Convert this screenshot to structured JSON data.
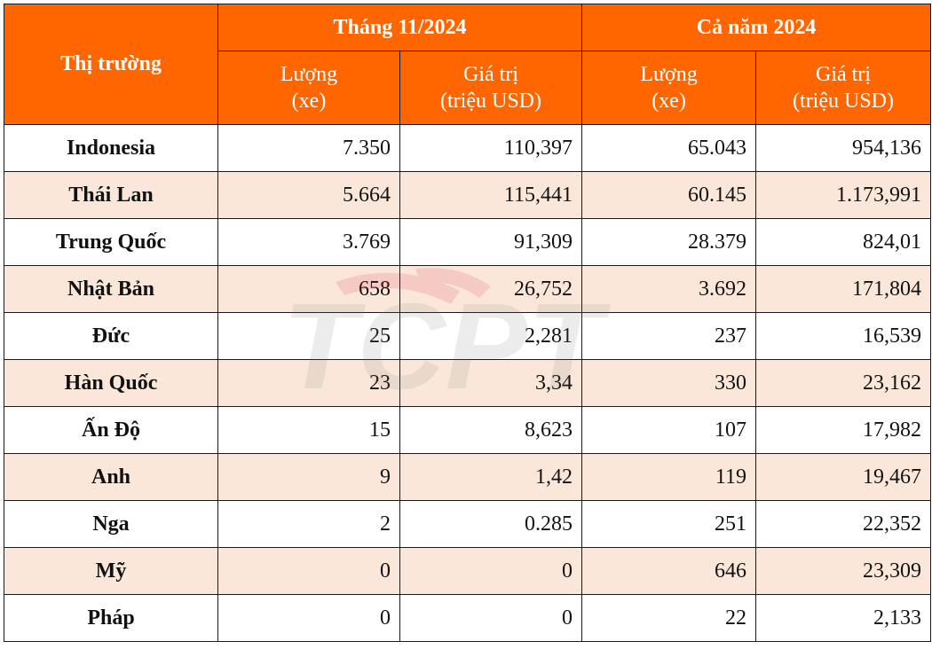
{
  "watermark": {
    "text": "TCPT",
    "color": "#c8102e"
  },
  "colors": {
    "header_bg": "#ff6600",
    "header_text": "#ffffff",
    "stripe": "#fbe7da",
    "border": "#1a1a1a"
  },
  "header": {
    "market": "Thị trường",
    "group1": "Tháng 11/2024",
    "group2": "Cả năm 2024",
    "qty_line1": "Lượng",
    "qty_line2": "(xe)",
    "val_line1": "Giá trị",
    "val_line2": "(triệu USD)"
  },
  "rows": [
    {
      "market": "Indonesia",
      "m_qty": "7.350",
      "m_val": "110,397",
      "y_qty": "65.043",
      "y_val": "954,136"
    },
    {
      "market": "Thái Lan",
      "m_qty": "5.664",
      "m_val": "115,441",
      "y_qty": "60.145",
      "y_val": "1.173,991"
    },
    {
      "market": "Trung Quốc",
      "m_qty": "3.769",
      "m_val": "91,309",
      "y_qty": "28.379",
      "y_val": "824,01"
    },
    {
      "market": "Nhật Bản",
      "m_qty": "658",
      "m_val": "26,752",
      "y_qty": "3.692",
      "y_val": "171,804"
    },
    {
      "market": "Đức",
      "m_qty": "25",
      "m_val": "2,281",
      "y_qty": "237",
      "y_val": "16,539"
    },
    {
      "market": "Hàn Quốc",
      "m_qty": "23",
      "m_val": "3,34",
      "y_qty": "330",
      "y_val": "23,162"
    },
    {
      "market": "Ấn Độ",
      "m_qty": "15",
      "m_val": "8,623",
      "y_qty": "107",
      "y_val": "17,982"
    },
    {
      "market": "Anh",
      "m_qty": "9",
      "m_val": "1,42",
      "y_qty": "119",
      "y_val": "19,467"
    },
    {
      "market": "Nga",
      "m_qty": "2",
      "m_val": "0.285",
      "y_qty": "251",
      "y_val": "22,352"
    },
    {
      "market": "Mỹ",
      "m_qty": "0",
      "m_val": "0",
      "y_qty": "646",
      "y_val": "23,309"
    },
    {
      "market": "Pháp",
      "m_qty": "0",
      "m_val": "0",
      "y_qty": "22",
      "y_val": "2,133"
    }
  ]
}
